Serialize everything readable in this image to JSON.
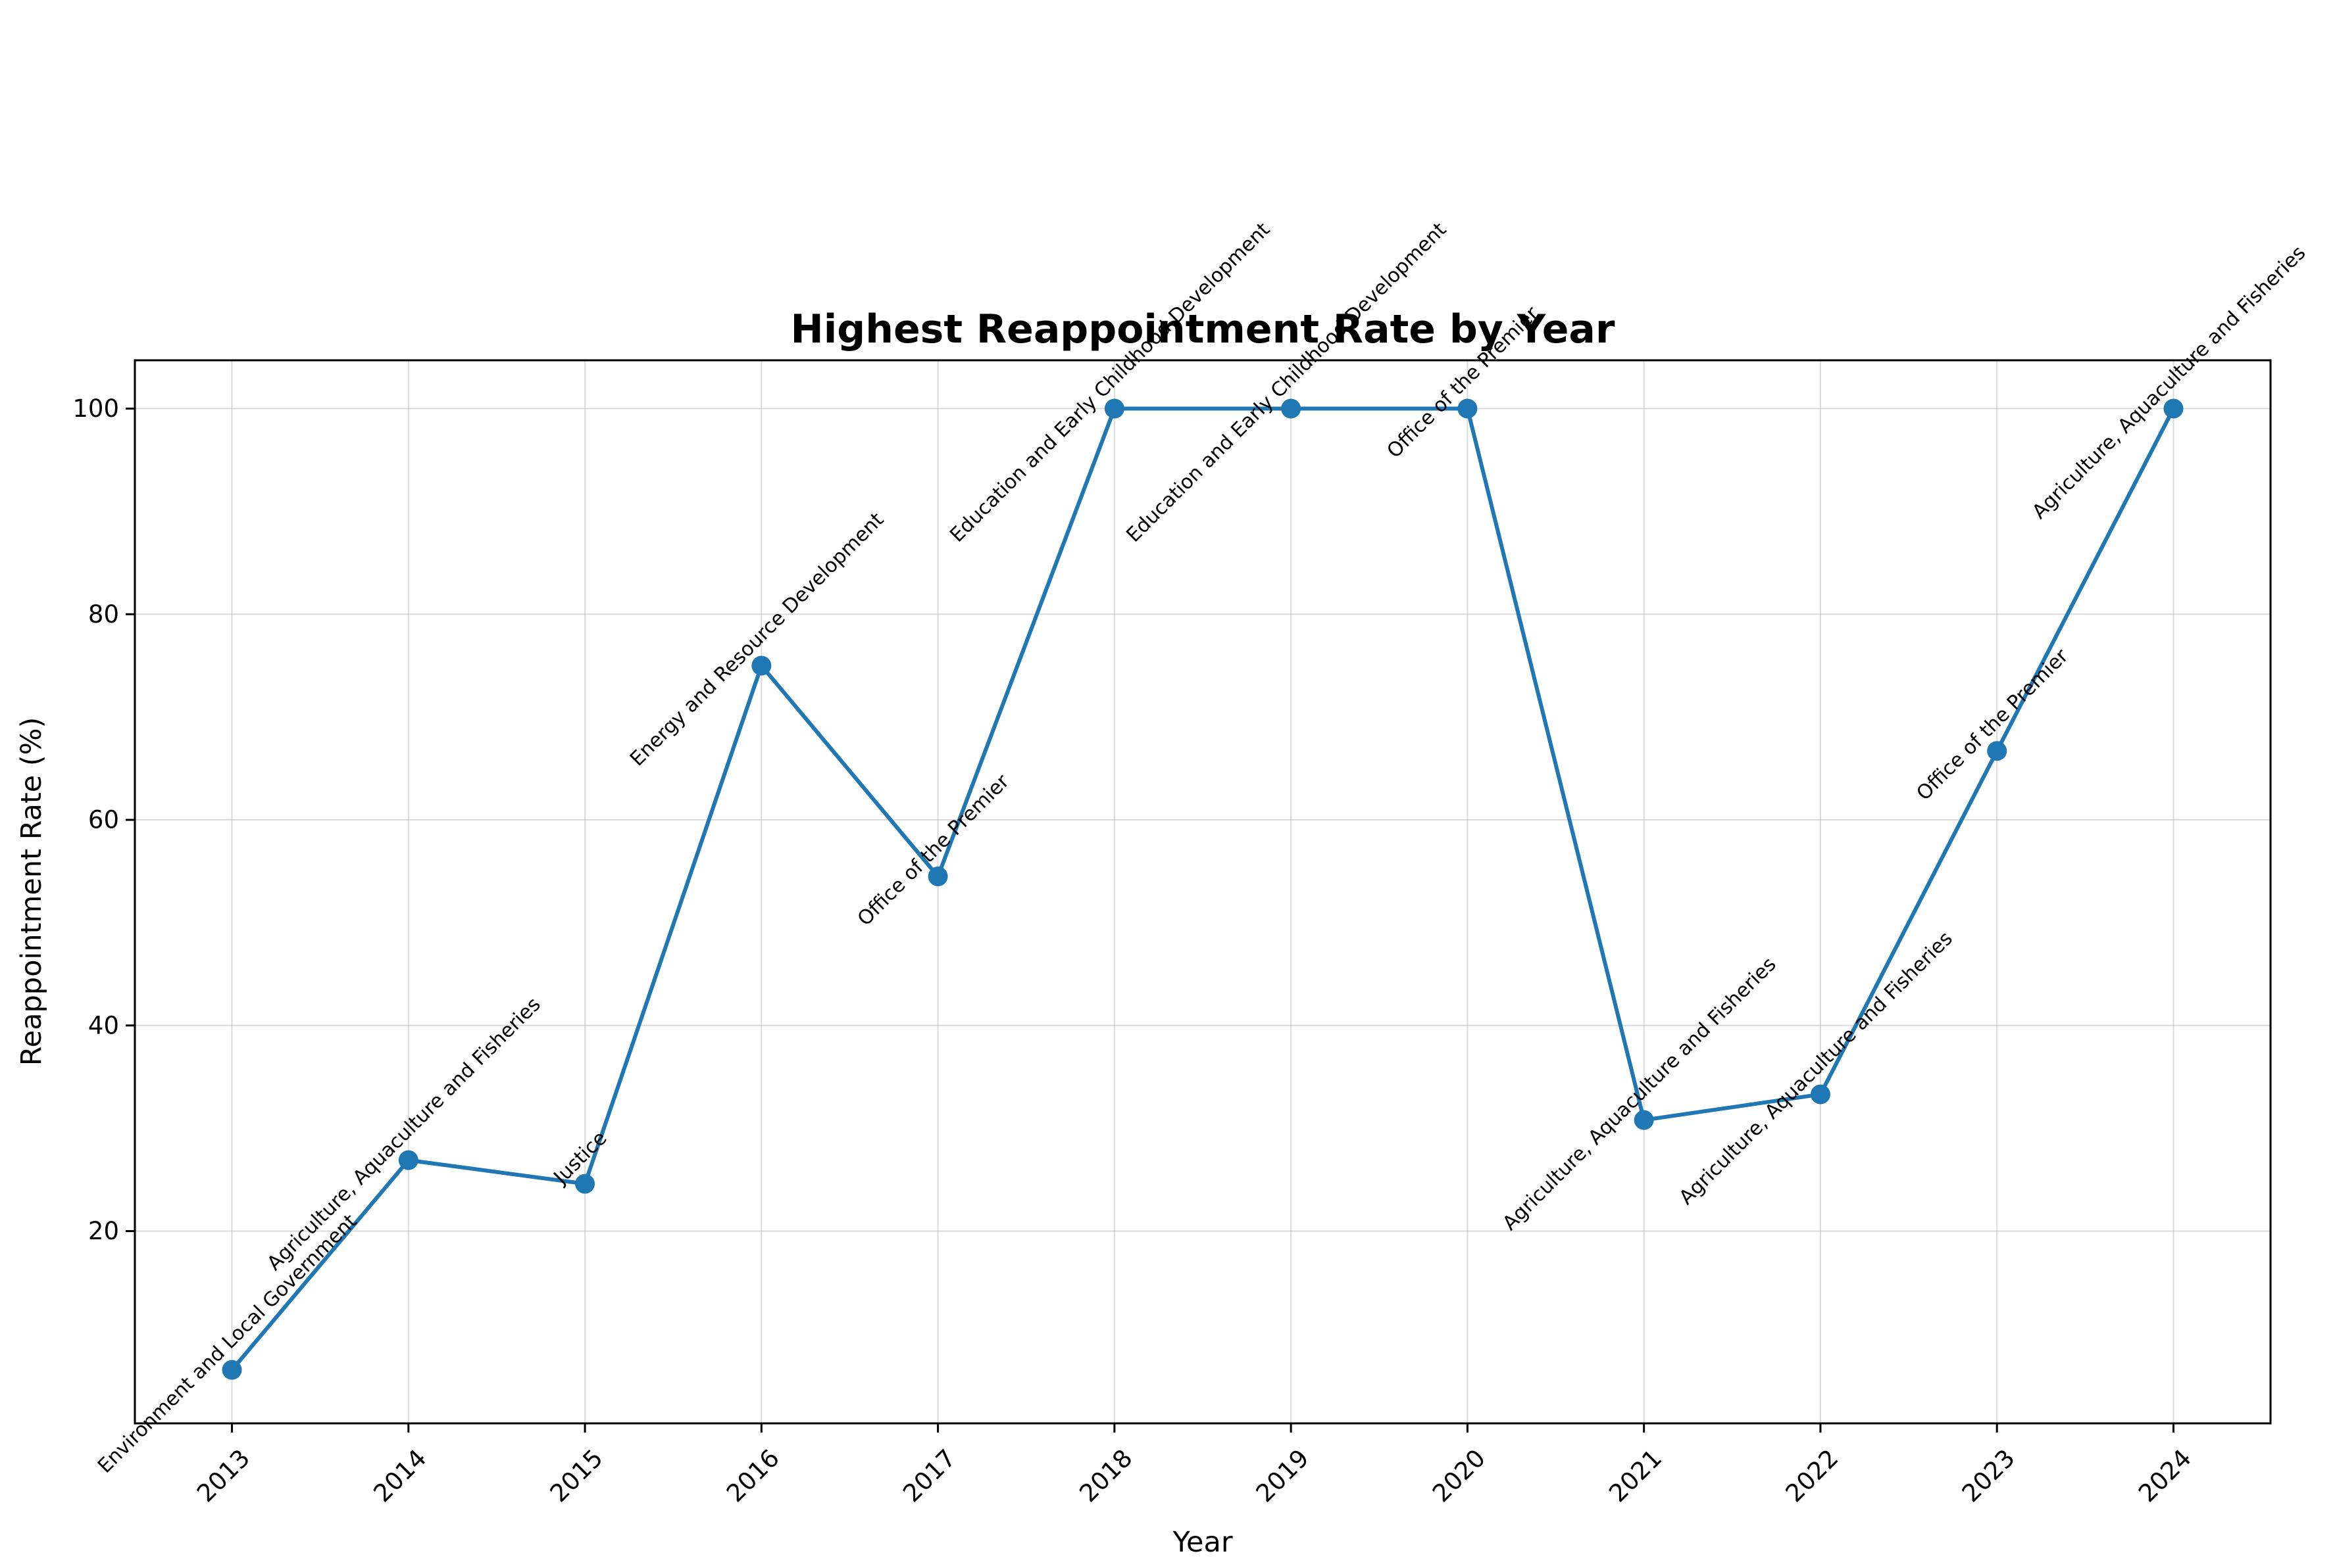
{
  "chart_data": {
    "type": "line",
    "title": "Highest Reappointment Rate by Year",
    "xlabel": "Year",
    "ylabel": "Reappointment Rate (%)",
    "x": [
      2013,
      2014,
      2015,
      2016,
      2017,
      2018,
      2019,
      2020,
      2021,
      2022,
      2023,
      2024
    ],
    "series": [
      {
        "values": [
          6.5,
          26.9,
          24.6,
          75.0,
          54.5,
          100.0,
          100.0,
          100.0,
          30.8,
          33.3,
          66.7,
          100.0
        ],
        "color": "#1f77b4",
        "marker": "circle"
      }
    ],
    "annotations": [
      "Environment and Local Government",
      "Agriculture, Aquaculture and Fisheries",
      "Justice",
      "Energy and Resource Development",
      "Office of the Premier",
      "Education and Early Childhood Development",
      "Education and Early Childhood Development",
      "Office of the Premier",
      "Agriculture, Aquaculture and Fisheries",
      "Agriculture, Aquaculture and Fisheries",
      "Office of the Premier",
      "Agriculture, Aquaculture and Fisheries"
    ],
    "xticks": [
      "2013",
      "2014",
      "2015",
      "2016",
      "2017",
      "2018",
      "2019",
      "2020",
      "2021",
      "2022",
      "2023",
      "2024"
    ],
    "yticks": [
      "20",
      "40",
      "60",
      "80",
      "100"
    ],
    "ylim": [
      1.3,
      104.7
    ],
    "xlim": [
      2012.45,
      2024.55
    ],
    "grid": true,
    "legend": "none"
  }
}
